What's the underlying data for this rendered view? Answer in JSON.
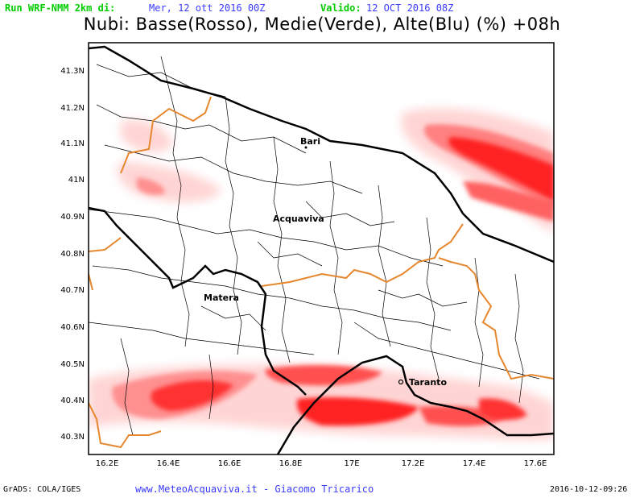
{
  "header": {
    "run_label": "Run WRF-NMM 2km di:",
    "run_value": "Mer, 12 ott 2016 00Z",
    "valid_label": "Valido:",
    "valid_value": "12 OCT 2016 08Z",
    "run_color": "#00cc00",
    "value_color": "#3a3aff"
  },
  "title": "Nubi: Basse(Rosso), Medie(Verde), Alte(Blu) (%) +08h",
  "axes": {
    "y_ticks": [
      "41.3N",
      "41.2N",
      "41.1N",
      "41N",
      "40.9N",
      "40.8N",
      "40.7N",
      "40.6N",
      "40.5N",
      "40.4N",
      "40.3N"
    ],
    "x_ticks": [
      "16.2E",
      "16.4E",
      "16.6E",
      "16.8E",
      "17E",
      "17.2E",
      "17.4E",
      "17.6E"
    ]
  },
  "cities": [
    {
      "name": "Bari"
    },
    {
      "name": "Acquaviva"
    },
    {
      "name": "Matera"
    },
    {
      "name": "Taranto"
    }
  ],
  "footer": {
    "left": "GrADS: COLA/IGES",
    "center": "www.MeteoAcquaviva.it  -  Giacomo Tricarico",
    "right": "2016-10-12-09:26",
    "center_color": "#3a3aff"
  },
  "colors": {
    "low_cloud": "#ff0000",
    "coast": "#000000",
    "region_border": "#e6872e"
  }
}
